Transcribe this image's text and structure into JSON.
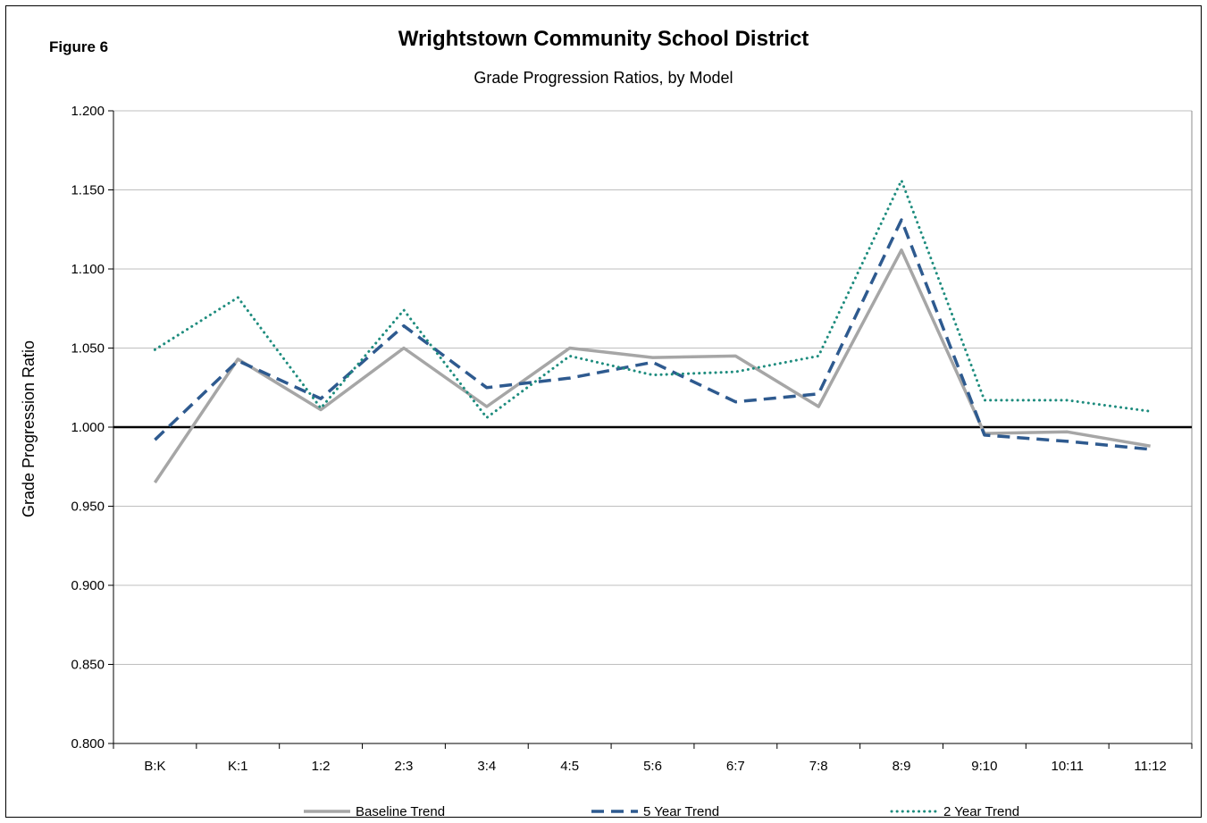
{
  "figure_label": "Figure 6",
  "chart_data": {
    "type": "line",
    "title": "Wrightstown  Community  School  District",
    "subtitle": "Grade Progression Ratios, by Model",
    "xlabel": "",
    "ylabel": "Grade Progression Ratio",
    "ylim": [
      0.8,
      1.2
    ],
    "yticks": [
      "0.800",
      "0.850",
      "0.900",
      "0.950",
      "1.000",
      "1.050",
      "1.100",
      "1.150",
      "1.200"
    ],
    "reference_line": 1.0,
    "grid": true,
    "legend_position": "bottom",
    "categories": [
      "B:K",
      "K:1",
      "1:2",
      "2:3",
      "3:4",
      "4:5",
      "5:6",
      "6:7",
      "7:8",
      "8:9",
      "9:10",
      "10:11",
      "11:12"
    ],
    "series": [
      {
        "name": "Baseline Trend",
        "style": "solid",
        "color": "#A6A6A6",
        "values": [
          0.965,
          1.043,
          1.011,
          1.05,
          1.013,
          1.05,
          1.044,
          1.045,
          1.013,
          1.112,
          0.996,
          0.997,
          0.988
        ]
      },
      {
        "name": "5 Year Trend",
        "style": "dashed",
        "color": "#2E5A8F",
        "values": [
          0.992,
          1.042,
          1.018,
          1.064,
          1.025,
          1.031,
          1.041,
          1.016,
          1.021,
          1.131,
          0.995,
          0.991,
          0.986
        ]
      },
      {
        "name": "2 Year Trend",
        "style": "dotted",
        "color": "#1E8C7E",
        "values": [
          1.049,
          1.082,
          1.012,
          1.074,
          1.006,
          1.045,
          1.033,
          1.035,
          1.045,
          1.156,
          1.017,
          1.017,
          1.01
        ]
      }
    ]
  }
}
